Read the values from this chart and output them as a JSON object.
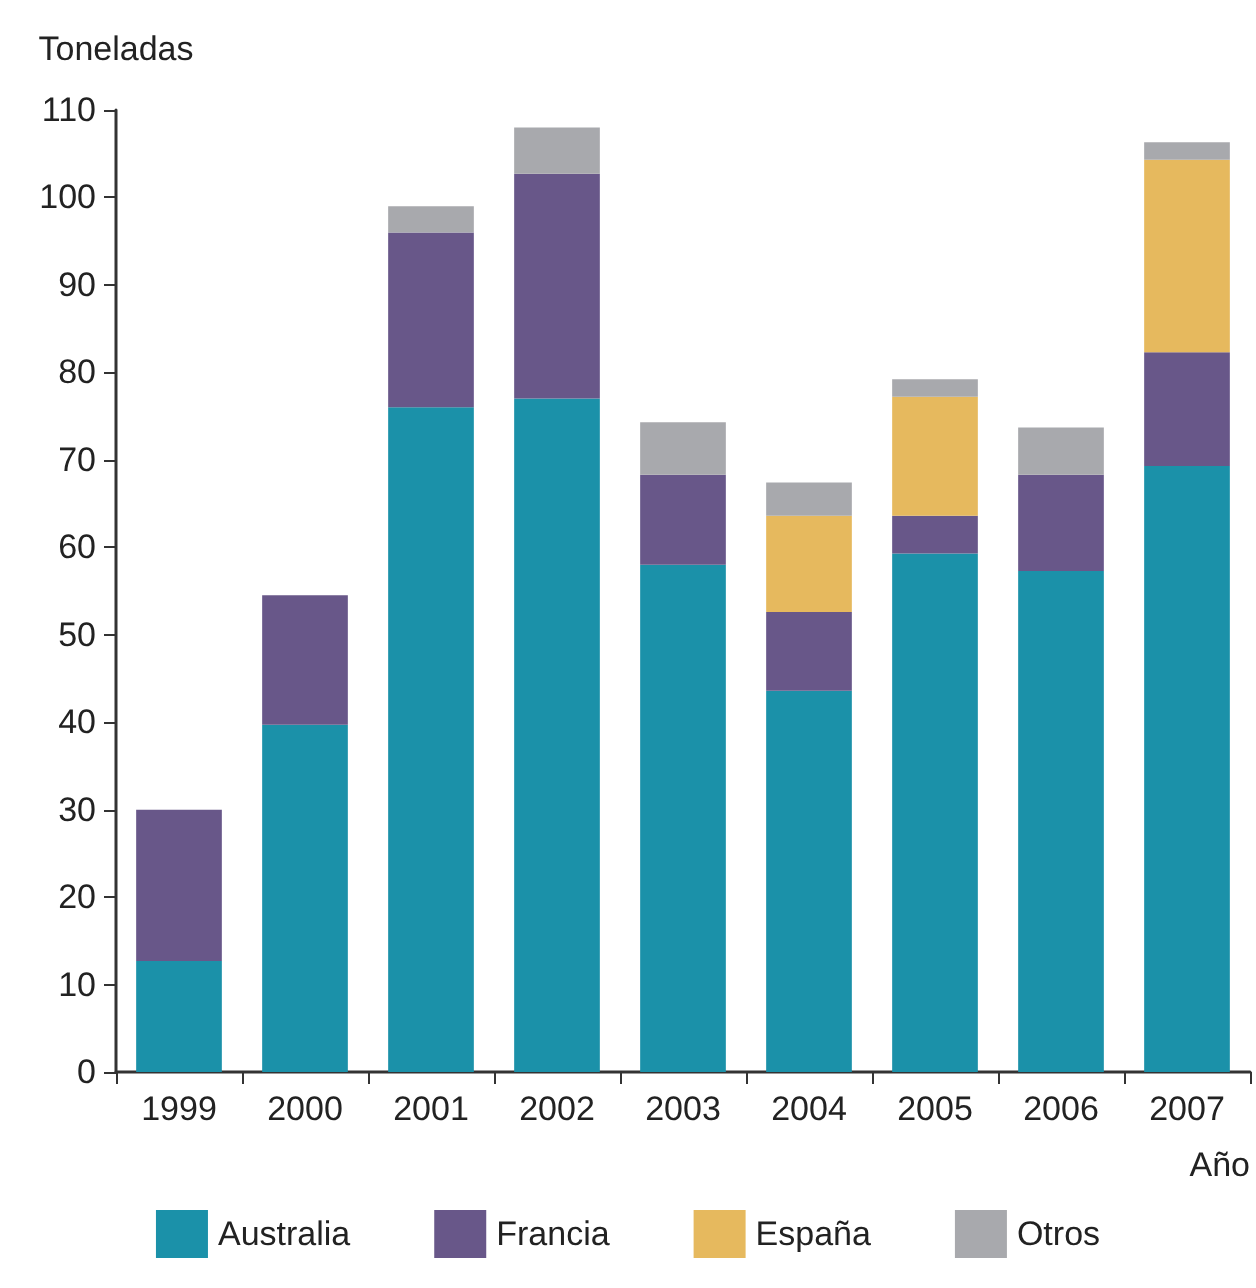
{
  "chart_data": {
    "type": "bar",
    "stacked": true,
    "ylabel": "Toneladas",
    "xlabel": "Año",
    "categories": [
      "1999",
      "2000",
      "2001",
      "2002",
      "2003",
      "2004",
      "2005",
      "2006",
      "2007"
    ],
    "series": [
      {
        "name": "Australia",
        "color": "#1b91a9",
        "values": [
          12.7,
          39.7,
          76,
          77,
          58,
          43.6,
          59.3,
          57.3,
          69.3
        ]
      },
      {
        "name": "Francia",
        "color": "#685789",
        "values": [
          17.3,
          14.8,
          20,
          25.7,
          10.3,
          9,
          4.3,
          11,
          13
        ]
      },
      {
        "name": "España",
        "color": "#e6b95e",
        "values": [
          null,
          null,
          null,
          null,
          null,
          11,
          13.6,
          null,
          22
        ]
      },
      {
        "name": "Otros",
        "color": "#a8a9ad",
        "values": [
          null,
          null,
          3,
          5.3,
          6,
          3.8,
          2,
          5.4,
          2
        ]
      }
    ],
    "ylim": [
      0,
      110
    ],
    "yticks": [
      0,
      10,
      20,
      30,
      40,
      50,
      60,
      70,
      80,
      90,
      100,
      110
    ],
    "grid": false,
    "legend": "bottom"
  }
}
